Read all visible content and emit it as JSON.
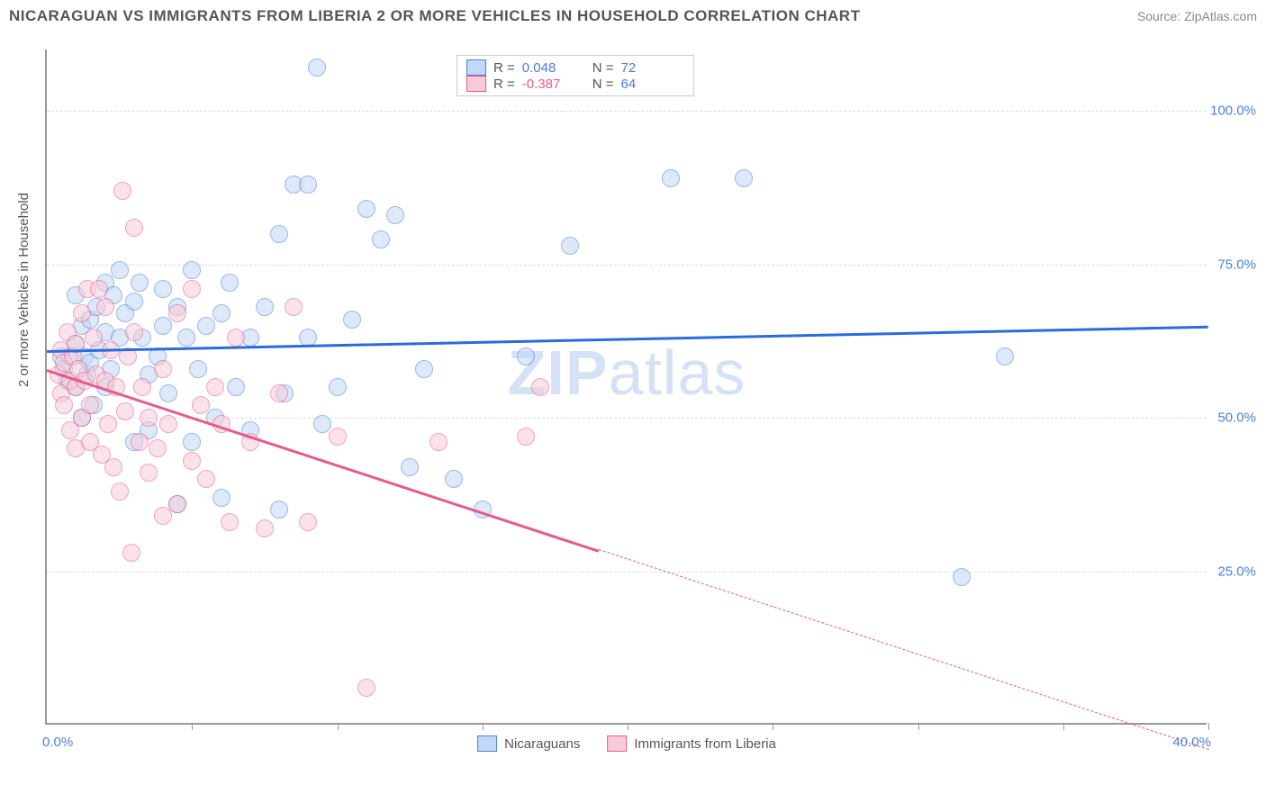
{
  "header": {
    "title": "NICARAGUAN VS IMMIGRANTS FROM LIBERIA 2 OR MORE VEHICLES IN HOUSEHOLD CORRELATION CHART",
    "source": "Source: ZipAtlas.com"
  },
  "watermark": {
    "part1": "ZIP",
    "part2": "atlas"
  },
  "y_axis": {
    "title": "2 or more Vehicles in Household",
    "label_color": "#4A7EDB"
  },
  "chart": {
    "type": "scatter",
    "plot_bg": "#ffffff",
    "grid_color": "#dddddd",
    "axis_color": "#999999",
    "xlim": [
      0,
      40
    ],
    "ylim": [
      0,
      110
    ],
    "y_gridlines": [
      25,
      50,
      75,
      100
    ],
    "y_labels": [
      "25.0%",
      "50.0%",
      "75.0%",
      "100.0%"
    ],
    "x_ticks": [
      5,
      10,
      15,
      20,
      25,
      30,
      35,
      40
    ],
    "x_labels": {
      "start": "0.0%",
      "end": "40.0%"
    },
    "point_radius": 10,
    "point_opacity": 0.55,
    "series": [
      {
        "name": "Nicaraguans",
        "color": "#6fa3e8",
        "fill": "#c2d8f4",
        "stroke": "#4a7edb",
        "R": "0.048",
        "N": "72",
        "trend": {
          "x1": 0,
          "y1": 61,
          "x2": 40,
          "y2": 65,
          "color": "#2a6be0",
          "dash_after_x": null
        },
        "points": [
          [
            0.5,
            60
          ],
          [
            0.6,
            58
          ],
          [
            0.7,
            56
          ],
          [
            0.8,
            60
          ],
          [
            1.0,
            62
          ],
          [
            1.0,
            55
          ],
          [
            1.0,
            70
          ],
          [
            1.2,
            65
          ],
          [
            1.2,
            50
          ],
          [
            1.3,
            60
          ],
          [
            1.4,
            57
          ],
          [
            1.5,
            66
          ],
          [
            1.5,
            59
          ],
          [
            1.6,
            52
          ],
          [
            1.7,
            68
          ],
          [
            1.8,
            61
          ],
          [
            2.0,
            64
          ],
          [
            2.0,
            72
          ],
          [
            2.0,
            55
          ],
          [
            2.2,
            58
          ],
          [
            2.3,
            70
          ],
          [
            2.5,
            63
          ],
          [
            2.5,
            74
          ],
          [
            2.7,
            67
          ],
          [
            3.0,
            46
          ],
          [
            3.0,
            69
          ],
          [
            3.2,
            72
          ],
          [
            3.3,
            63
          ],
          [
            3.5,
            57
          ],
          [
            3.5,
            48
          ],
          [
            3.8,
            60
          ],
          [
            4.0,
            65
          ],
          [
            4.0,
            71
          ],
          [
            4.2,
            54
          ],
          [
            4.5,
            68
          ],
          [
            4.5,
            36
          ],
          [
            4.8,
            63
          ],
          [
            5.0,
            46
          ],
          [
            5.0,
            74
          ],
          [
            5.2,
            58
          ],
          [
            5.5,
            65
          ],
          [
            5.8,
            50
          ],
          [
            6.0,
            67
          ],
          [
            6.0,
            37
          ],
          [
            6.3,
            72
          ],
          [
            6.5,
            55
          ],
          [
            7.0,
            63
          ],
          [
            7.0,
            48
          ],
          [
            7.5,
            68
          ],
          [
            8.0,
            35
          ],
          [
            8.0,
            80
          ],
          [
            8.2,
            54
          ],
          [
            8.5,
            88
          ],
          [
            9.0,
            63
          ],
          [
            9.0,
            88
          ],
          [
            9.3,
            107
          ],
          [
            9.5,
            49
          ],
          [
            10.0,
            55
          ],
          [
            10.5,
            66
          ],
          [
            11.0,
            84
          ],
          [
            11.5,
            79
          ],
          [
            12.0,
            83
          ],
          [
            12.5,
            42
          ],
          [
            13.0,
            58
          ],
          [
            14.0,
            40
          ],
          [
            15.0,
            35
          ],
          [
            16.5,
            60
          ],
          [
            18.0,
            78
          ],
          [
            21.5,
            89
          ],
          [
            24.0,
            89
          ],
          [
            31.5,
            24
          ],
          [
            33.0,
            60
          ]
        ]
      },
      {
        "name": "Immigrants from Liberia",
        "color": "#f0a5be",
        "fill": "#f7cbd9",
        "stroke": "#e85a8a",
        "R": "-0.387",
        "N": "64",
        "trend": {
          "x1": 0,
          "y1": 58,
          "x2": 40,
          "y2": -4,
          "color": "#e85a8a",
          "dash_after_x": 19
        },
        "points": [
          [
            0.4,
            57
          ],
          [
            0.5,
            61
          ],
          [
            0.5,
            54
          ],
          [
            0.6,
            59
          ],
          [
            0.6,
            52
          ],
          [
            0.7,
            64
          ],
          [
            0.8,
            56
          ],
          [
            0.8,
            48
          ],
          [
            0.9,
            60
          ],
          [
            1.0,
            55
          ],
          [
            1.0,
            62
          ],
          [
            1.0,
            45
          ],
          [
            1.1,
            58
          ],
          [
            1.2,
            67
          ],
          [
            1.2,
            50
          ],
          [
            1.3,
            56
          ],
          [
            1.4,
            71
          ],
          [
            1.5,
            52
          ],
          [
            1.5,
            46
          ],
          [
            1.6,
            63
          ],
          [
            1.7,
            57
          ],
          [
            1.8,
            71
          ],
          [
            1.9,
            44
          ],
          [
            2.0,
            56
          ],
          [
            2.0,
            68
          ],
          [
            2.1,
            49
          ],
          [
            2.2,
            61
          ],
          [
            2.3,
            42
          ],
          [
            2.4,
            55
          ],
          [
            2.5,
            38
          ],
          [
            2.6,
            87
          ],
          [
            2.7,
            51
          ],
          [
            2.8,
            60
          ],
          [
            2.9,
            28
          ],
          [
            3.0,
            64
          ],
          [
            3.0,
            81
          ],
          [
            3.2,
            46
          ],
          [
            3.3,
            55
          ],
          [
            3.5,
            41
          ],
          [
            3.5,
            50
          ],
          [
            3.8,
            45
          ],
          [
            4.0,
            34
          ],
          [
            4.0,
            58
          ],
          [
            4.2,
            49
          ],
          [
            4.5,
            67
          ],
          [
            4.5,
            36
          ],
          [
            5.0,
            43
          ],
          [
            5.0,
            71
          ],
          [
            5.3,
            52
          ],
          [
            5.5,
            40
          ],
          [
            5.8,
            55
          ],
          [
            6.0,
            49
          ],
          [
            6.3,
            33
          ],
          [
            6.5,
            63
          ],
          [
            7.0,
            46
          ],
          [
            7.5,
            32
          ],
          [
            8.0,
            54
          ],
          [
            8.5,
            68
          ],
          [
            9.0,
            33
          ],
          [
            10.0,
            47
          ],
          [
            11.0,
            6
          ],
          [
            13.5,
            46
          ],
          [
            16.5,
            47
          ],
          [
            17.0,
            55
          ]
        ]
      }
    ]
  },
  "legend_bottom": [
    {
      "label": "Nicaraguans",
      "fill": "#c2d8f4",
      "stroke": "#4a7edb"
    },
    {
      "label": "Immigrants from Liberia",
      "fill": "#f7cbd9",
      "stroke": "#e85a8a"
    }
  ]
}
